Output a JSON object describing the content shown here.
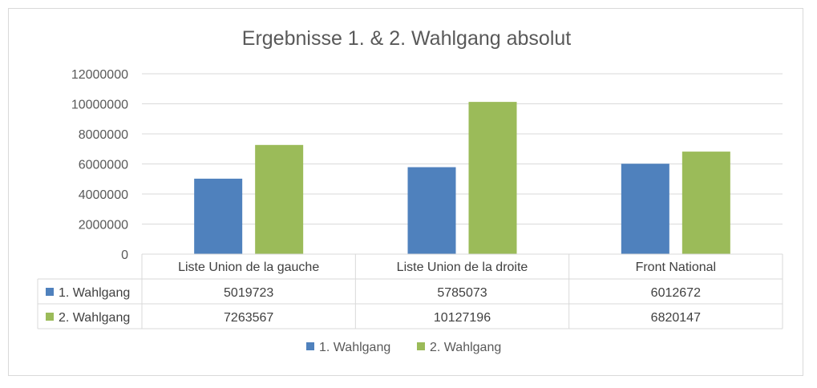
{
  "chart_data": {
    "type": "bar",
    "title": "Ergebnisse 1. & 2. Wahlgang absolut",
    "categories": [
      "Liste Union de la gauche",
      "Liste Union de la droite",
      "Front National"
    ],
    "series": [
      {
        "name": "1. Wahlgang",
        "color": "#4F81BD",
        "values": [
          5019723,
          5785073,
          6012672
        ]
      },
      {
        "name": "2. Wahlgang",
        "color": "#9BBB59",
        "values": [
          7263567,
          10127196,
          6820147
        ]
      }
    ],
    "ylim": [
      0,
      12000000
    ],
    "yticks": [
      0,
      2000000,
      4000000,
      6000000,
      8000000,
      10000000,
      12000000
    ],
    "grid": true,
    "data_table": true,
    "legend": "bottom"
  }
}
